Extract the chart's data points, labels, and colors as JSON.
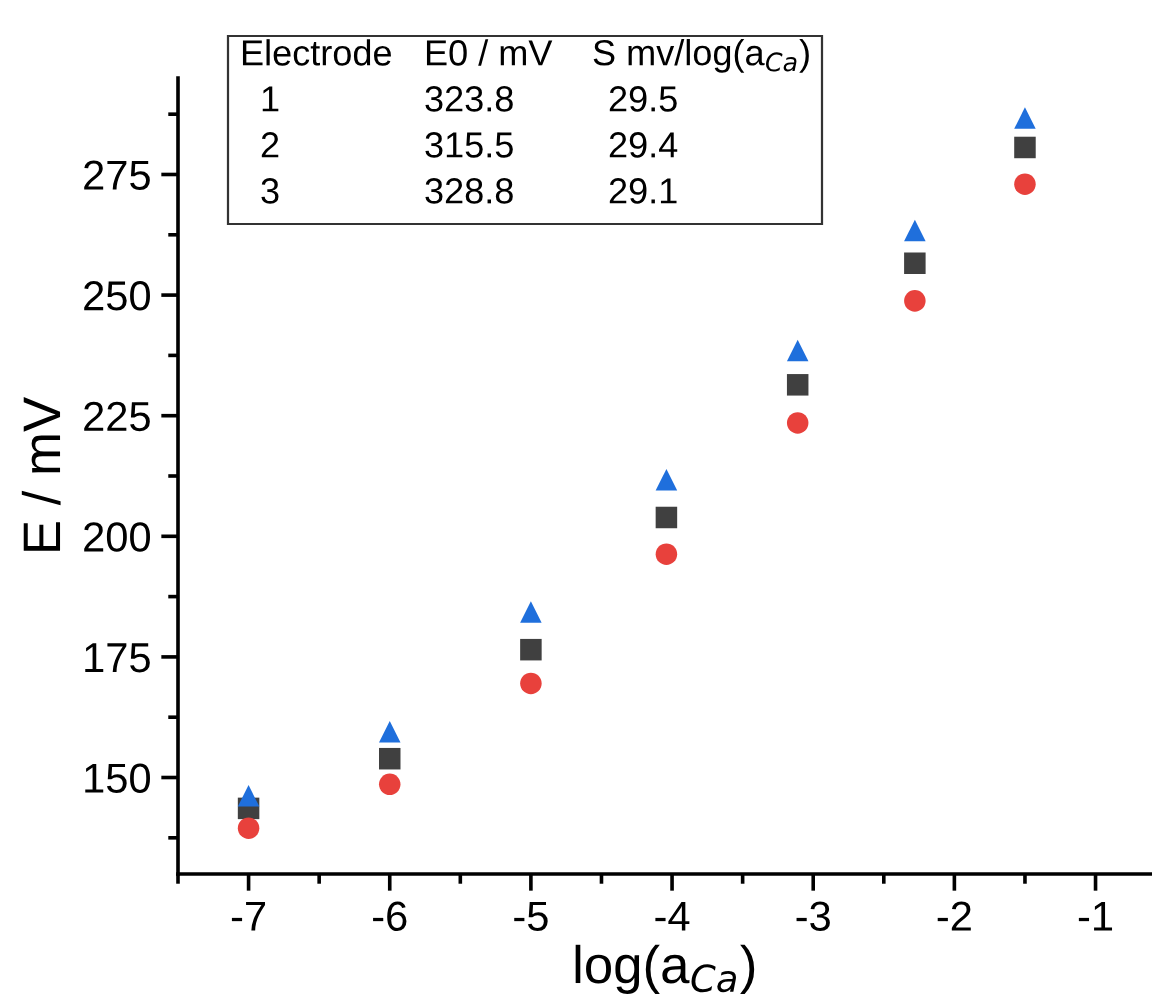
{
  "chart_data": {
    "type": "scatter",
    "xlabel": "log(a$_{Ca}$)",
    "ylabel": "E / mV",
    "x": [
      -7,
      -6,
      -5,
      -4.04,
      -3.11,
      -2.28,
      -1.5
    ],
    "series": [
      {
        "color": "#404040",
        "marker": "square",
        "values": [
          143.6,
          153.9,
          176.5,
          203.9,
          231.4,
          256.6,
          280.6
        ]
      },
      {
        "color": "#e8413c",
        "marker": "circle",
        "values": [
          139.5,
          148.6,
          169.5,
          196.3,
          223.5,
          248.8,
          273.0
        ]
      },
      {
        "color": "#1f6fdc",
        "marker": "triangle",
        "values": [
          146.2,
          159.5,
          184.3,
          211.7,
          238.5,
          263.4,
          286.7
        ]
      }
    ],
    "xlim": [
      -7.5,
      -0.6
    ],
    "ylim": [
      130,
      295
    ],
    "xticks": [
      -7,
      -6,
      -5,
      -4,
      -3,
      -2,
      -1
    ],
    "yticks": [
      150,
      175,
      200,
      225,
      250,
      275
    ],
    "grid": false,
    "legend": false,
    "annotations": [
      "Electrode",
      "E0 / mV",
      "S mv/log(a$_{Ca}$)",
      "1",
      "323.8",
      "29.5",
      "2",
      "315.5",
      "29.4",
      "3",
      "328.8",
      "29.1"
    ]
  }
}
